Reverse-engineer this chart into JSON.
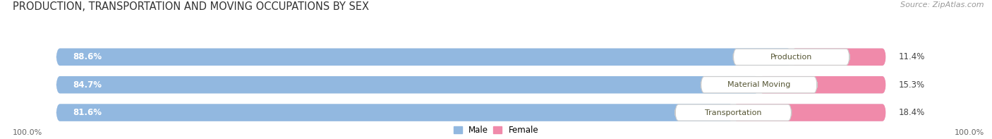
{
  "title": "PRODUCTION, TRANSPORTATION AND MOVING OCCUPATIONS BY SEX",
  "source_text": "Source: ZipAtlas.com",
  "categories": [
    "Production",
    "Material Moving",
    "Transportation"
  ],
  "male_values": [
    88.6,
    84.7,
    81.6
  ],
  "female_values": [
    11.4,
    15.3,
    18.4
  ],
  "male_color": "#92b8e0",
  "female_color": "#f08aaa",
  "male_label": "Male",
  "female_label": "Female",
  "bar_bg_color": "#dde5ef",
  "title_fontsize": 10.5,
  "source_fontsize": 8,
  "bar_height": 0.62,
  "bar_gap": 0.18,
  "background_color": "#ffffff",
  "left_axis_label": "100.0%",
  "right_axis_label": "100.0%",
  "total_width": 100
}
